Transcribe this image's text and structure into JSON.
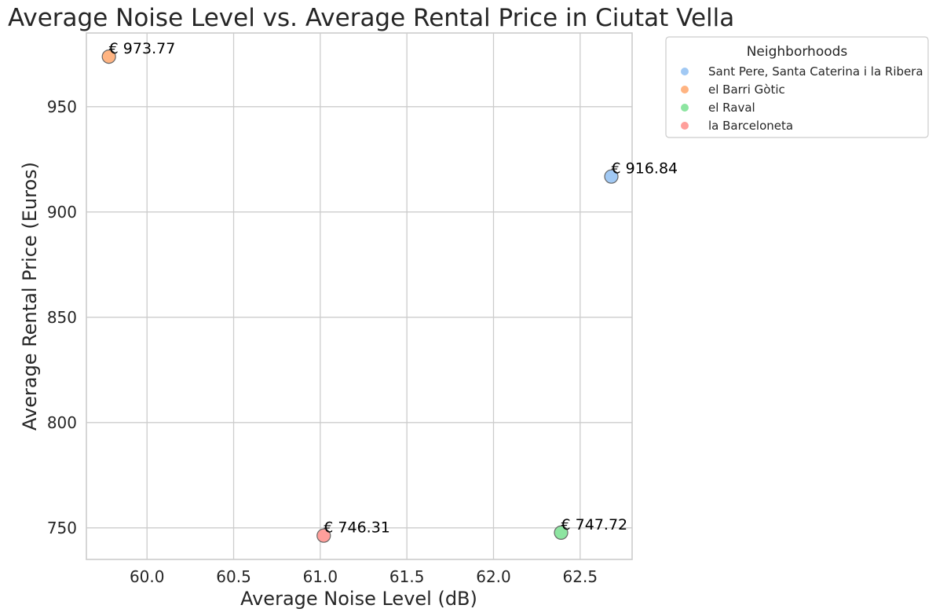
{
  "chart_data": {
    "type": "scatter",
    "title": "Average Noise Level vs. Average Rental Price in Ciutat Vella",
    "xlabel": "Average Noise Level (dB)",
    "ylabel": "Average Rental Price (Euros)",
    "xlim": [
      59.65,
      62.8
    ],
    "ylim": [
      735,
      985
    ],
    "xticks": [
      60.0,
      60.5,
      61.0,
      61.5,
      62.0,
      62.5
    ],
    "xtick_labels": [
      "60.0",
      "60.5",
      "61.0",
      "61.5",
      "62.0",
      "62.5"
    ],
    "yticks": [
      750,
      800,
      850,
      900,
      950
    ],
    "ytick_labels": [
      "750",
      "800",
      "850",
      "900",
      "950"
    ],
    "grid": true,
    "legend": {
      "title": "Neighborhoods",
      "placement": "outside-top-right"
    },
    "series": [
      {
        "name": "Sant Pere, Santa Caterina i la Ribera",
        "color": "#a1c9f4",
        "x": 62.68,
        "y": 916.84,
        "label": "€ 916.84"
      },
      {
        "name": "el Barri Gòtic",
        "color": "#ffb482",
        "x": 59.78,
        "y": 973.77,
        "label": "€ 973.77"
      },
      {
        "name": "el Raval",
        "color": "#8de5a1",
        "x": 62.39,
        "y": 747.72,
        "label": "€ 747.72"
      },
      {
        "name": "la Barceloneta",
        "color": "#ff9f9b",
        "x": 61.02,
        "y": 746.31,
        "label": "€ 746.31"
      }
    ]
  }
}
